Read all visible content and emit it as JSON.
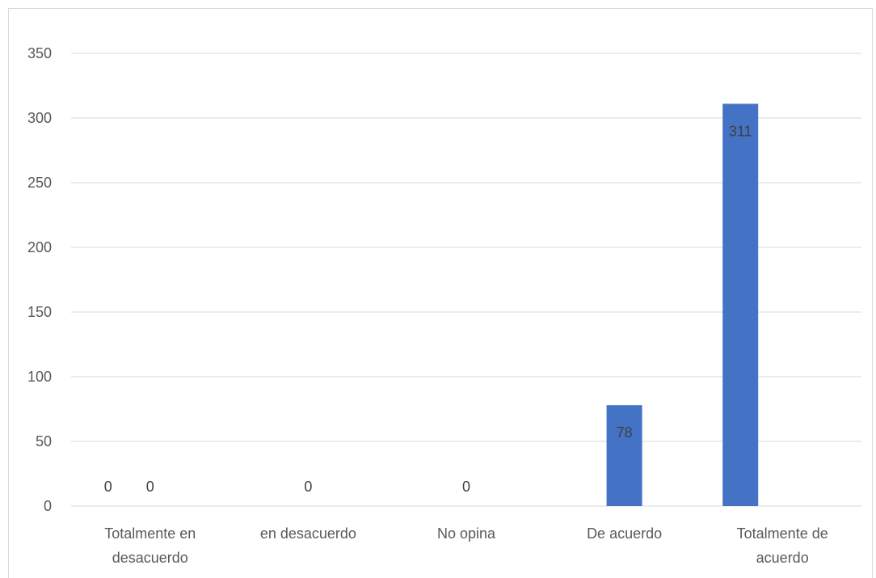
{
  "chart_data": {
    "type": "bar",
    "title": "",
    "xlabel": "",
    "ylabel": "",
    "ylim": [
      0,
      350
    ],
    "yticks": [
      0,
      50,
      100,
      150,
      200,
      250,
      300,
      350
    ],
    "grid": true,
    "legend": "none",
    "categories": [
      [
        "Totalmente en",
        "desacuerdo"
      ],
      [
        "en desacuerdo"
      ],
      [
        "No opina"
      ],
      [
        "De acuerdo"
      ],
      [
        "Totalmente de",
        "acuerdo"
      ]
    ],
    "series": [
      {
        "color": "#4472c4",
        "values": [
          0,
          0,
          0,
          0,
          311
        ]
      },
      {
        "color": "#4472c4",
        "values": [
          0,
          0,
          0,
          78,
          0
        ]
      }
    ],
    "data_labels": [
      {
        "category_index": 0,
        "series_index": 1,
        "text": "0"
      },
      {
        "category_index": 0,
        "series_index": 0,
        "text": "0"
      },
      {
        "category_index": 1,
        "series_index": 1,
        "text": "0"
      },
      {
        "category_index": 2,
        "series_index": 1,
        "text": "0"
      },
      {
        "category_index": 3,
        "series_index": 1,
        "text": "78"
      },
      {
        "category_index": 4,
        "series_index": 0,
        "text": "311"
      }
    ],
    "colors": {
      "bar": "#4472c4",
      "grid": "#d9d9d9",
      "text": "#595959"
    }
  }
}
